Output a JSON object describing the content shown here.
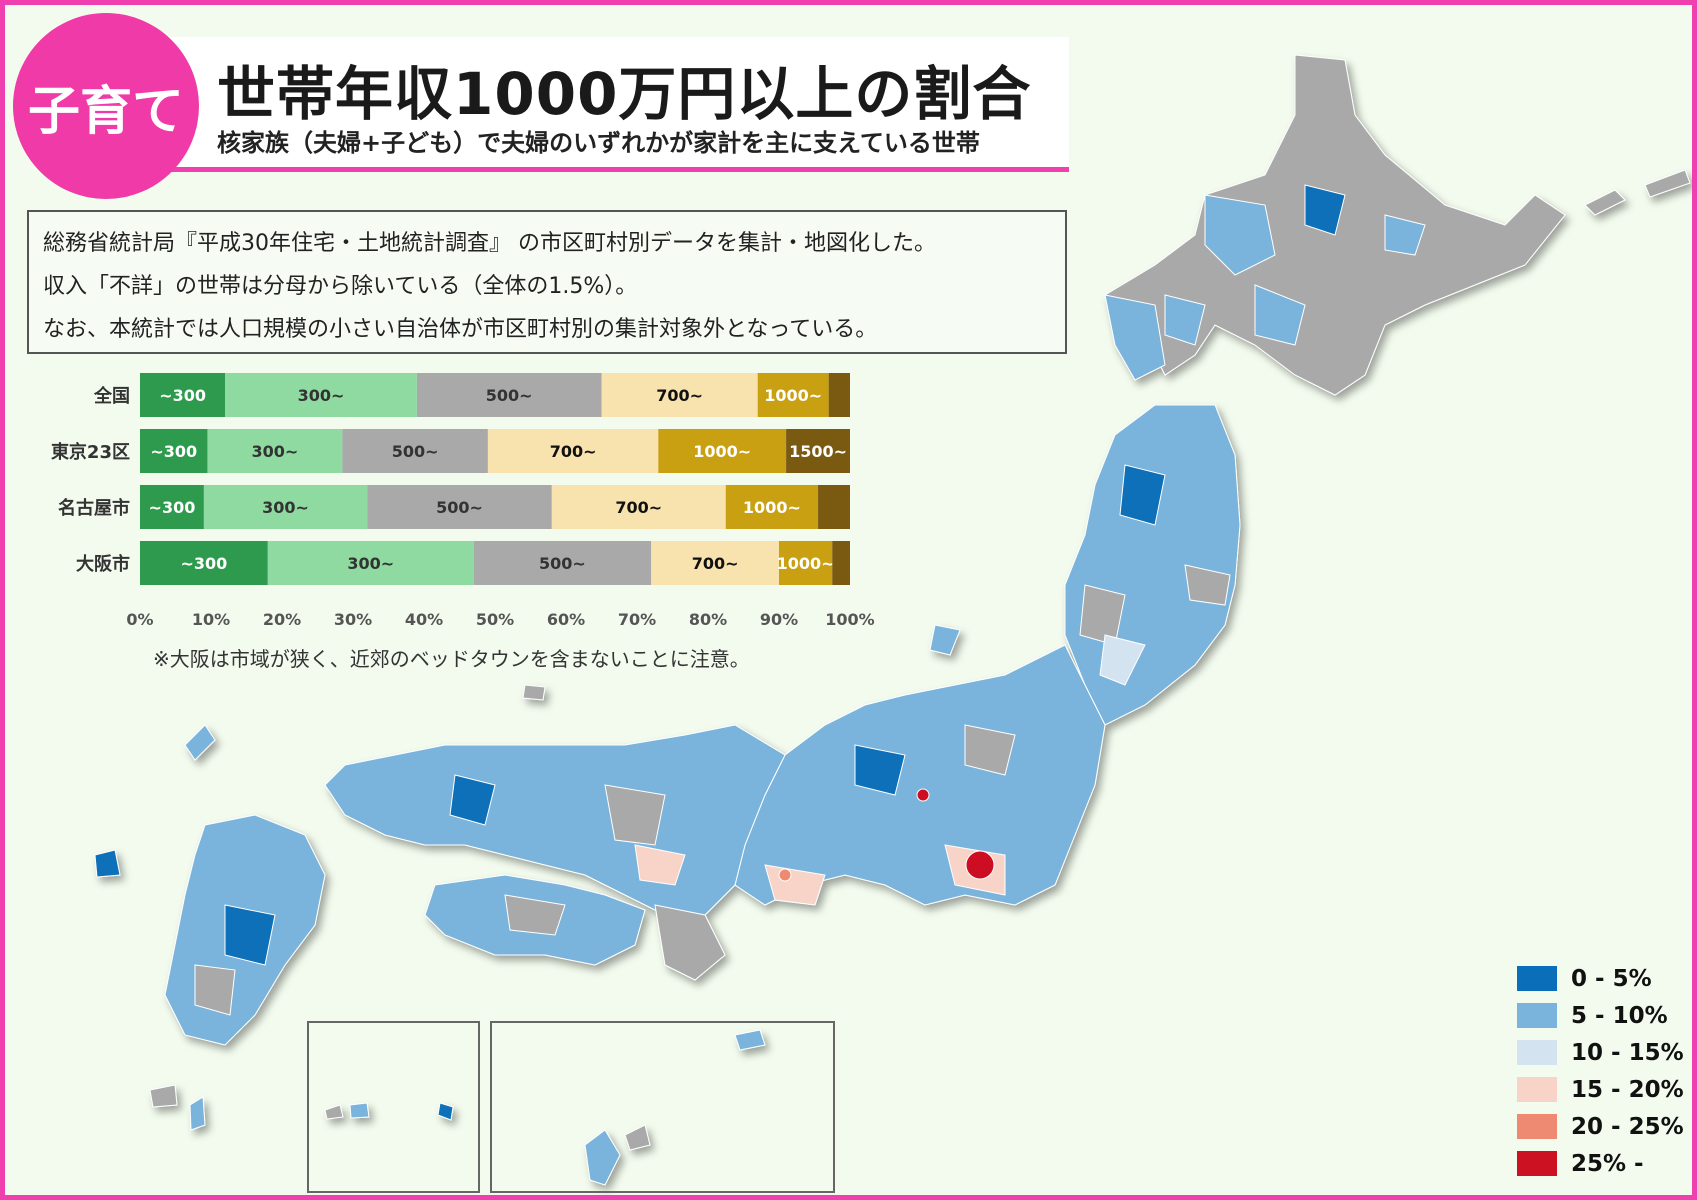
{
  "badge": "子育て",
  "title": "世帯年収1000万円以上の割合",
  "subtitle": "核家族（夫婦+子ども）で夫婦のいずれかが家計を主に支えている世帯",
  "notes": [
    "総務省統計局『平成30年住宅・土地統計調査』 の市区町村別データを集計・地図化した。",
    "収入「不詳」の世帯は分母から除いている（全体の1.5%）。",
    "なお、本統計では人口規模の小さい自治体が市区町村別の集計対象外となっている。"
  ],
  "caveat": "※大阪は市域が狭く、近郊のベッドタウンを含まないことに注意。",
  "chart_data": {
    "type": "bar",
    "stacked": true,
    "orientation": "horizontal",
    "categories": [
      "全国",
      "東京23区",
      "名古屋市",
      "大阪市"
    ],
    "series": [
      {
        "name": "~300",
        "color": "#2e9a4d",
        "values": [
          12,
          9.5,
          9,
          18
        ]
      },
      {
        "name": "300~",
        "color": "#8fdaa0",
        "values": [
          27,
          19,
          23,
          29
        ]
      },
      {
        "name": "500~",
        "color": "#a9a9a9",
        "values": [
          26,
          20.5,
          26,
          25
        ]
      },
      {
        "name": "700~",
        "color": "#f8e2ad",
        "values": [
          22,
          24,
          24.5,
          18
        ]
      },
      {
        "name": "1000~",
        "color": "#c9a012",
        "values": [
          10,
          18,
          13,
          7.5
        ]
      },
      {
        "name": "1500~",
        "color": "#7a5a10",
        "values": [
          3,
          9,
          4.5,
          2.5
        ]
      }
    ],
    "segment_labels": [
      [
        "~300",
        "300~",
        "500~",
        "700~",
        "1000~",
        ""
      ],
      [
        "~300",
        "300~",
        "500~",
        "700~",
        "1000~",
        "1500~"
      ],
      [
        "~300",
        "300~",
        "500~",
        "700~",
        "1000~",
        ""
      ],
      [
        "~300",
        "300~",
        "500~",
        "700~",
        "1000~",
        ""
      ]
    ],
    "xlim": [
      0,
      100
    ],
    "xticks": [
      "0%",
      "10%",
      "20%",
      "30%",
      "40%",
      "50%",
      "60%",
      "70%",
      "80%",
      "90%",
      "100%"
    ]
  },
  "legend": [
    {
      "label": "0 - 5%",
      "color": "#0a6fb8"
    },
    {
      "label": "5 - 10%",
      "color": "#7ab4dc"
    },
    {
      "label": "10 - 15%",
      "color": "#d3e4f0"
    },
    {
      "label": "15 - 20%",
      "color": "#f8d4c8"
    },
    {
      "label": "20 - 25%",
      "color": "#ee8a72"
    },
    {
      "label": "25% -",
      "color": "#cc1122"
    }
  ]
}
